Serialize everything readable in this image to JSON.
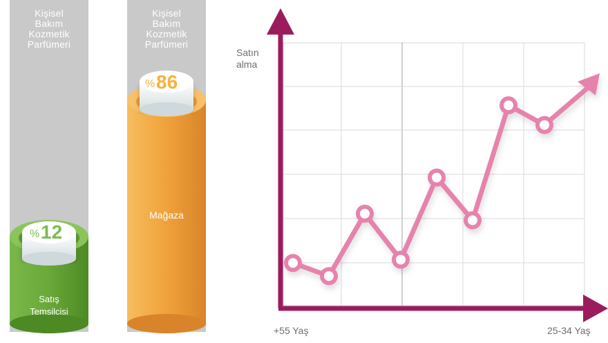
{
  "colors": {
    "left_cylinder": "#6aa83a",
    "right_cylinder": "#f0a23a",
    "left_pct_text": "#7dbb52",
    "right_pct_text": "#f5b23e",
    "chart_line": "#e683ad",
    "axis": "#9b1c5e",
    "grid": "#d8d8d8",
    "column_bg": "#c9c9c9"
  },
  "columns": [
    {
      "title_lines": [
        "Kişisel",
        "Bakım",
        "Kozmetik",
        "Parfümeri"
      ],
      "percent_sign": "%",
      "percent_value": "12",
      "value": 12,
      "label_lines": [
        "Satış",
        "Temsilcisi"
      ]
    },
    {
      "title_lines": [
        "Kişisel",
        "Bakım",
        "Kozmetik",
        "Parfümeri"
      ],
      "percent_sign": "%",
      "percent_value": "86",
      "value": 86,
      "label_lines": [
        "Mağaza"
      ]
    }
  ],
  "chart_data": [
    {
      "type": "bar",
      "categories": [
        "Satış Temsilcisi",
        "Mağaza"
      ],
      "values": [
        12,
        86
      ],
      "category_group": "Kişisel Bakım Kozmetik Parfümeri"
    },
    {
      "type": "line",
      "ylabel_lines": [
        "Satın",
        "alma"
      ],
      "x_start_label": "+55 Yaş",
      "x_end_label": "25-34 Yaş",
      "x": [
        1,
        2,
        3,
        4,
        5,
        6,
        7,
        8
      ],
      "values": [
        1.3,
        0.9,
        2.8,
        1.4,
        3.9,
        2.6,
        6.1,
        5.5
      ],
      "ylim": [
        0,
        8
      ],
      "grid": true,
      "trend_arrow": true
    }
  ]
}
